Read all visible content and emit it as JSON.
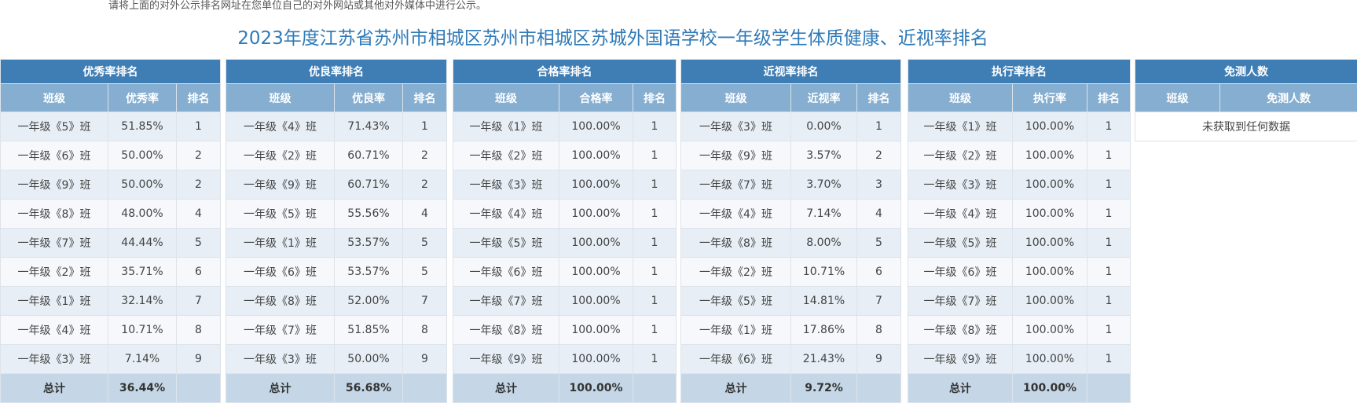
{
  "notice": "请将上面的对外公示排名网址在您单位自己的对外网站或其他对外媒体中进行公示。",
  "title": "2023年度江苏省苏州市相城区苏州市相城区苏城外国语学校一年级学生体质健康、近视率排名",
  "tables": [
    {
      "heading": "优秀率排名",
      "columns": [
        "班级",
        "优秀率",
        "排名"
      ],
      "rows": [
        [
          "一年级《5》班",
          "51.85%",
          "1"
        ],
        [
          "一年级《6》班",
          "50.00%",
          "2"
        ],
        [
          "一年级《9》班",
          "50.00%",
          "2"
        ],
        [
          "一年级《8》班",
          "48.00%",
          "4"
        ],
        [
          "一年级《7》班",
          "44.44%",
          "5"
        ],
        [
          "一年级《2》班",
          "35.71%",
          "6"
        ],
        [
          "一年级《1》班",
          "32.14%",
          "7"
        ],
        [
          "一年级《4》班",
          "10.71%",
          "8"
        ],
        [
          "一年级《3》班",
          "7.14%",
          "9"
        ]
      ],
      "total": [
        "总计",
        "36.44%",
        ""
      ]
    },
    {
      "heading": "优良率排名",
      "columns": [
        "班级",
        "优良率",
        "排名"
      ],
      "rows": [
        [
          "一年级《4》班",
          "71.43%",
          "1"
        ],
        [
          "一年级《2》班",
          "60.71%",
          "2"
        ],
        [
          "一年级《9》班",
          "60.71%",
          "2"
        ],
        [
          "一年级《5》班",
          "55.56%",
          "4"
        ],
        [
          "一年级《1》班",
          "53.57%",
          "5"
        ],
        [
          "一年级《6》班",
          "53.57%",
          "5"
        ],
        [
          "一年级《8》班",
          "52.00%",
          "7"
        ],
        [
          "一年级《7》班",
          "51.85%",
          "8"
        ],
        [
          "一年级《3》班",
          "50.00%",
          "9"
        ]
      ],
      "total": [
        "总计",
        "56.68%",
        ""
      ]
    },
    {
      "heading": "合格率排名",
      "columns": [
        "班级",
        "合格率",
        "排名"
      ],
      "rows": [
        [
          "一年级《1》班",
          "100.00%",
          "1"
        ],
        [
          "一年级《2》班",
          "100.00%",
          "1"
        ],
        [
          "一年级《3》班",
          "100.00%",
          "1"
        ],
        [
          "一年级《4》班",
          "100.00%",
          "1"
        ],
        [
          "一年级《5》班",
          "100.00%",
          "1"
        ],
        [
          "一年级《6》班",
          "100.00%",
          "1"
        ],
        [
          "一年级《7》班",
          "100.00%",
          "1"
        ],
        [
          "一年级《8》班",
          "100.00%",
          "1"
        ],
        [
          "一年级《9》班",
          "100.00%",
          "1"
        ]
      ],
      "total": [
        "总计",
        "100.00%",
        ""
      ]
    },
    {
      "heading": "近视率排名",
      "columns": [
        "班级",
        "近视率",
        "排名"
      ],
      "rows": [
        [
          "一年级《3》班",
          "0.00%",
          "1"
        ],
        [
          "一年级《9》班",
          "3.57%",
          "2"
        ],
        [
          "一年级《7》班",
          "3.70%",
          "3"
        ],
        [
          "一年级《4》班",
          "7.14%",
          "4"
        ],
        [
          "一年级《8》班",
          "8.00%",
          "5"
        ],
        [
          "一年级《2》班",
          "10.71%",
          "6"
        ],
        [
          "一年级《5》班",
          "14.81%",
          "7"
        ],
        [
          "一年级《1》班",
          "17.86%",
          "8"
        ],
        [
          "一年级《6》班",
          "21.43%",
          "9"
        ]
      ],
      "total": [
        "总计",
        "9.72%",
        ""
      ]
    },
    {
      "heading": "执行率排名",
      "columns": [
        "班级",
        "执行率",
        "排名"
      ],
      "rows": [
        [
          "一年级《1》班",
          "100.00%",
          "1"
        ],
        [
          "一年级《2》班",
          "100.00%",
          "1"
        ],
        [
          "一年级《3》班",
          "100.00%",
          "1"
        ],
        [
          "一年级《4》班",
          "100.00%",
          "1"
        ],
        [
          "一年级《5》班",
          "100.00%",
          "1"
        ],
        [
          "一年级《6》班",
          "100.00%",
          "1"
        ],
        [
          "一年级《7》班",
          "100.00%",
          "1"
        ],
        [
          "一年级《8》班",
          "100.00%",
          "1"
        ],
        [
          "一年级《9》班",
          "100.00%",
          "1"
        ]
      ],
      "total": [
        "总计",
        "100.00%",
        ""
      ]
    }
  ],
  "exempt": {
    "heading": "免测人数",
    "columns": [
      "班级",
      "免测人数"
    ],
    "empty_text": "未获取到任何数据"
  },
  "colors": {
    "title": "#2f7ab8",
    "group_header": "#3f7db5",
    "column_header": "#85aed0",
    "row_odd": "#e7eef5",
    "row_even": "#f6f8fb",
    "total_row": "#c5d7e6"
  }
}
